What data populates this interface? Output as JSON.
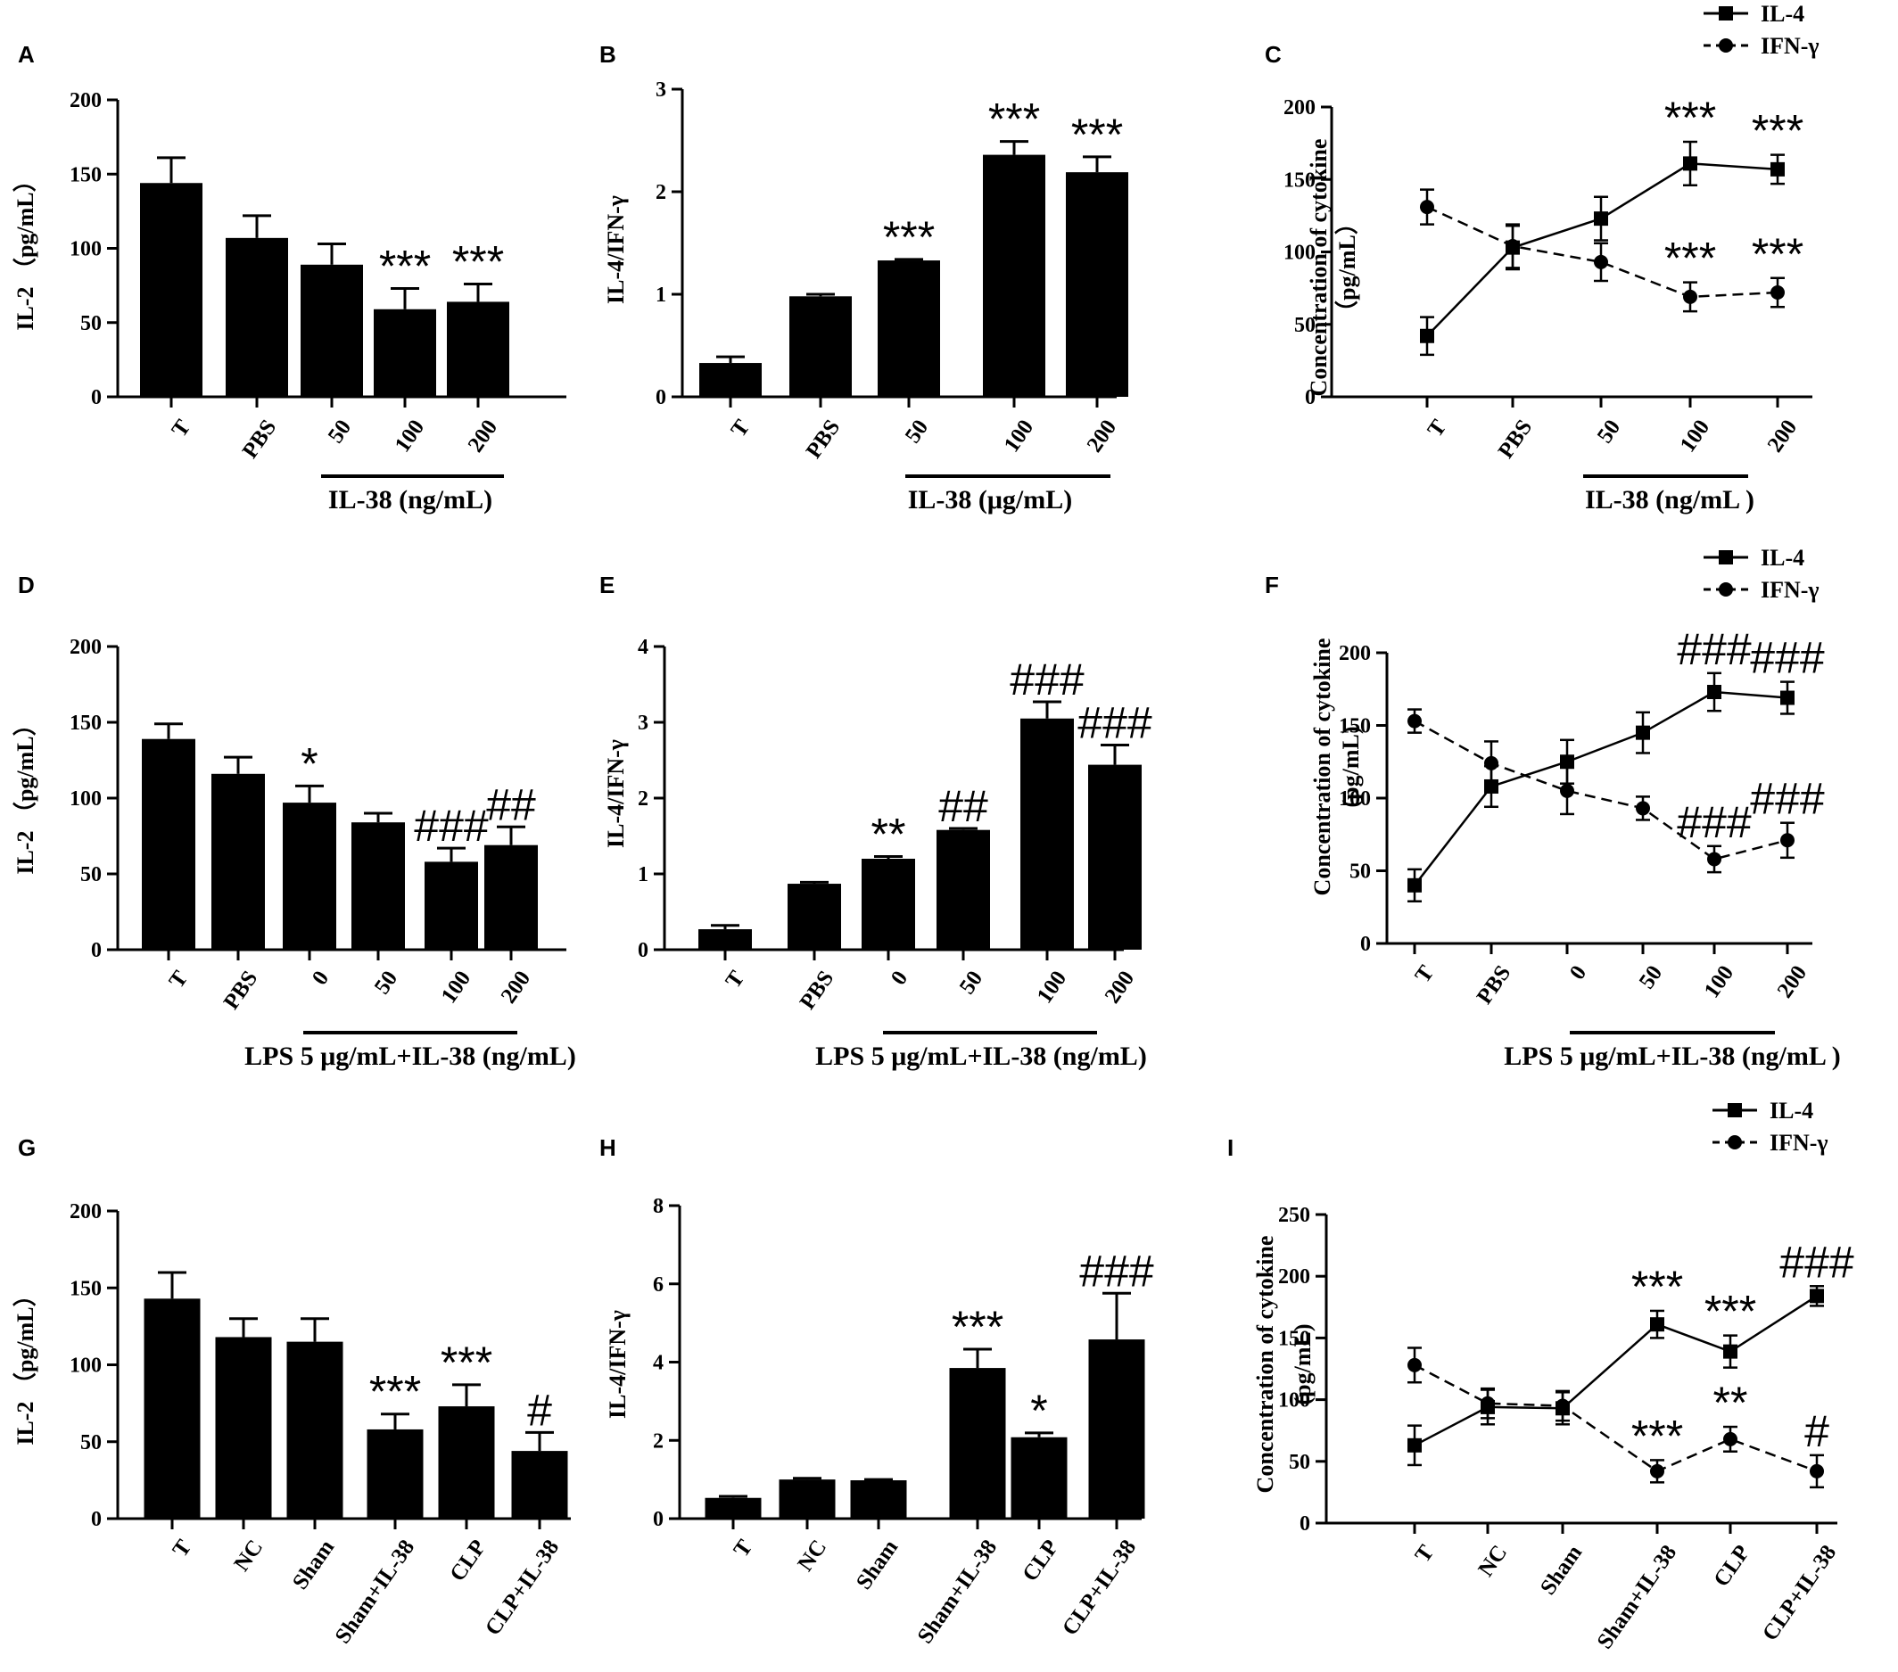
{
  "chart_data": [
    {
      "panel": "A",
      "type": "bar",
      "categories": [
        "T",
        "PBS",
        "50",
        "100",
        "200"
      ],
      "values": [
        144,
        107,
        89,
        59,
        64
      ],
      "errors": [
        17,
        15,
        14,
        14,
        12
      ],
      "annotations": [
        "",
        "",
        "",
        "***",
        "***"
      ],
      "ylabel": "IL-2 （pg/mL）",
      "ylim": [
        0,
        200
      ],
      "yticks": [
        "0",
        "50",
        "100",
        "150",
        "200"
      ],
      "group_label": "IL-38 (ng/mL)",
      "group_from": 2,
      "group_to": 4
    },
    {
      "panel": "B",
      "type": "bar",
      "categories": [
        "T",
        "PBS",
        "50",
        "100",
        "200"
      ],
      "values": [
        0.33,
        0.98,
        1.33,
        2.36,
        2.19
      ],
      "errors": [
        0.06,
        0.02,
        0.01,
        0.13,
        0.15
      ],
      "annotations": [
        "",
        "",
        "***",
        "***",
        "***"
      ],
      "ylabel": "IL-4/IFN-γ",
      "ylim": [
        0,
        3
      ],
      "yticks": [
        "0",
        "1",
        "2",
        "3"
      ],
      "group_label": "IL-38 (μg/mL)",
      "group_from": 2,
      "group_to": 4
    },
    {
      "panel": "C",
      "type": "line",
      "categories": [
        "T",
        "PBS",
        "50",
        "100",
        "200"
      ],
      "series": [
        {
          "name": "IL-4",
          "values": [
            42,
            103,
            123,
            161,
            157
          ],
          "errors": [
            13,
            15,
            15,
            15,
            10
          ],
          "annotations": [
            "",
            "",
            "",
            "***",
            "***"
          ],
          "marker": "square",
          "dash": "solid"
        },
        {
          "name": "IFN-γ",
          "values": [
            131,
            104,
            93,
            69,
            72
          ],
          "errors": [
            12,
            15,
            13,
            10,
            10
          ],
          "annotations": [
            "",
            "",
            "",
            "***",
            "***"
          ],
          "marker": "circle",
          "dash": "dashed"
        }
      ],
      "ylabel": "Concentration of cytokine",
      "ylabel2": "（pg/mL）",
      "ylim": [
        0,
        200
      ],
      "yticks": [
        "0",
        "50",
        "100",
        "150",
        "200"
      ],
      "group_label": "IL-38 (ng/mL )",
      "group_from": 2,
      "group_to": 4
    },
    {
      "panel": "D",
      "type": "bar",
      "categories": [
        "T",
        "PBS",
        "0",
        "50",
        "100",
        "200"
      ],
      "values": [
        139,
        116,
        97,
        84,
        58,
        69
      ],
      "errors": [
        10,
        11,
        11,
        6,
        9,
        12
      ],
      "annotations": [
        "",
        "",
        "*",
        "",
        "###",
        "##"
      ],
      "ylabel": "IL-2 （pg/mL）",
      "ylim": [
        0,
        200
      ],
      "yticks": [
        "0",
        "50",
        "100",
        "150",
        "200"
      ],
      "group_label": "LPS 5 μg/mL+IL-38 (ng/mL)",
      "group_from": 2,
      "group_to": 5
    },
    {
      "panel": "E",
      "type": "bar",
      "categories": [
        "T",
        "PBS",
        "0",
        "50",
        "100",
        "200"
      ],
      "values": [
        0.27,
        0.87,
        1.2,
        1.58,
        3.05,
        2.44
      ],
      "errors": [
        0.05,
        0.02,
        0.03,
        0.02,
        0.22,
        0.26
      ],
      "annotations": [
        "",
        "",
        "**",
        "##",
        "###",
        "###"
      ],
      "ylabel": "IL-4/IFN-γ",
      "ylim": [
        0,
        4
      ],
      "yticks": [
        "0",
        "1",
        "2",
        "3",
        "4"
      ],
      "group_label": "LPS 5 μg/mL+IL-38 (ng/mL)",
      "group_from": 2,
      "group_to": 5
    },
    {
      "panel": "F",
      "type": "line",
      "categories": [
        "T",
        "PBS",
        "0",
        "50",
        "100",
        "200"
      ],
      "series": [
        {
          "name": "IL-4",
          "values": [
            40,
            108,
            125,
            145,
            173,
            169
          ],
          "errors": [
            11,
            14,
            15,
            14,
            13,
            11
          ],
          "annotations": [
            "",
            "",
            "",
            "",
            "###",
            "###"
          ],
          "marker": "square",
          "dash": "solid"
        },
        {
          "name": "IFN-γ",
          "values": [
            153,
            124,
            105,
            93,
            58,
            71
          ],
          "errors": [
            8,
            15,
            16,
            8,
            9,
            12
          ],
          "annotations": [
            "",
            "",
            "",
            "",
            "###",
            "###"
          ],
          "marker": "circle",
          "dash": "dashed"
        }
      ],
      "ylabel": "Concentration of cytokine",
      "ylabel2": "(pg/mL)",
      "ylim": [
        0,
        200
      ],
      "yticks": [
        "0",
        "50",
        "100",
        "150",
        "200"
      ],
      "group_label": "LPS 5 μg/mL+IL-38 (ng/mL )",
      "group_from": 2,
      "group_to": 5
    },
    {
      "panel": "G",
      "type": "bar",
      "categories": [
        "T",
        "NC",
        "Sham",
        "Sham+IL-38",
        "CLP",
        "CLP+IL-38"
      ],
      "values": [
        143,
        118,
        115,
        58,
        73,
        44
      ],
      "errors": [
        17,
        12,
        15,
        10,
        14,
        12
      ],
      "annotations": [
        "",
        "",
        "",
        "***",
        "***",
        "#"
      ],
      "ylabel": "IL-2  （pg/mL）",
      "ylim": [
        0,
        200
      ],
      "yticks": [
        "0",
        "50",
        "100",
        "150",
        "200"
      ]
    },
    {
      "panel": "H",
      "type": "bar",
      "categories": [
        "T",
        "NC",
        "Sham",
        "Sham+IL-38",
        "CLP",
        "CLP+IL-38"
      ],
      "values": [
        0.53,
        1.0,
        0.98,
        3.85,
        2.08,
        4.58
      ],
      "errors": [
        0.04,
        0.03,
        0.02,
        0.48,
        0.11,
        1.18
      ],
      "annotations": [
        "",
        "",
        "",
        "***",
        "*",
        "###"
      ],
      "ylabel": "IL-4/IFN-γ",
      "ylim": [
        0,
        8
      ],
      "yticks": [
        "0",
        "2",
        "4",
        "6",
        "8"
      ]
    },
    {
      "panel": "I",
      "type": "line",
      "categories": [
        "T",
        "NC",
        "Sham",
        "Sham+IL-38",
        "CLP",
        "CLP+IL-38"
      ],
      "series": [
        {
          "name": "IL-4",
          "values": [
            63,
            94,
            93,
            161,
            139,
            184
          ],
          "errors": [
            16,
            14,
            13,
            11,
            13,
            8
          ],
          "annotations": [
            "",
            "",
            "",
            "***",
            "***",
            "###"
          ],
          "marker": "square",
          "dash": "solid"
        },
        {
          "name": "IFN-γ",
          "values": [
            128,
            97,
            95,
            42,
            68,
            42
          ],
          "errors": [
            14,
            12,
            12,
            9,
            10,
            13
          ],
          "annotations": [
            "",
            "",
            "",
            "***",
            "**",
            "#"
          ],
          "marker": "circle",
          "dash": "dashed"
        }
      ],
      "ylabel": "Concentration of cytokine",
      "ylabel2": "(pg/mL)",
      "ylim": [
        0,
        250
      ],
      "yticks": [
        "0",
        "50",
        "100",
        "150",
        "200",
        "250"
      ]
    }
  ]
}
